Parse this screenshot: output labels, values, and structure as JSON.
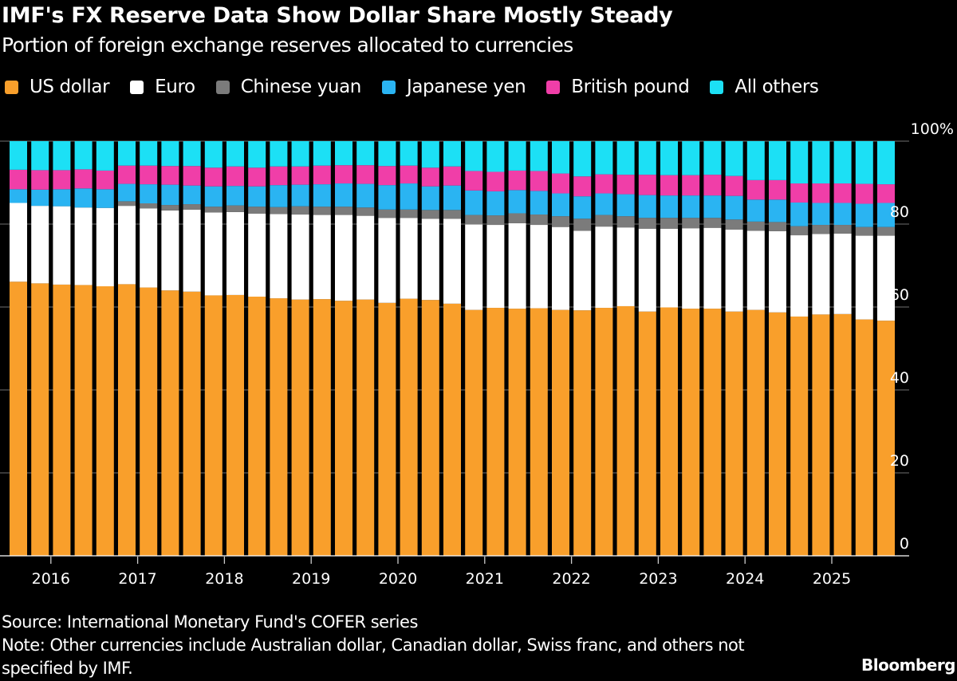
{
  "title": "IMF's FX Reserve Data Show Dollar Share Mostly Steady",
  "subtitle": "Portion of foreign exchange reserves allocated to currencies",
  "footer": {
    "source": "Source: International Monetary Fund's COFER series",
    "note_line1": "Note: Other currencies include Australian dollar, Canadian dollar, Swiss franc, and others not",
    "note_line2": "specified by IMF.",
    "brand": "Bloomberg"
  },
  "chart_data": {
    "type": "bar",
    "stacked": true,
    "title": "IMF's FX Reserve Data Show Dollar Share Mostly Steady",
    "subtitle": "Portion of foreign exchange reserves allocated to currencies",
    "xlabel": "",
    "ylabel": "",
    "ylim": [
      0,
      100
    ],
    "y_ticks": [
      0,
      20,
      40,
      60,
      80,
      100
    ],
    "y_tick_labels": [
      "0",
      "20",
      "40",
      "60",
      "80",
      "100%"
    ],
    "y_axis_side": "right",
    "grid": true,
    "legend_position": "top-left",
    "x_tick_labels": [
      "2016",
      "2017",
      "2018",
      "2019",
      "2020",
      "2021",
      "2022",
      "2023",
      "2024",
      "2025"
    ],
    "categories": [
      "2015Q3",
      "2015Q4",
      "2016Q1",
      "2016Q2",
      "2016Q3",
      "2016Q4",
      "2017Q1",
      "2017Q2",
      "2017Q3",
      "2017Q4",
      "2018Q1",
      "2018Q2",
      "2018Q3",
      "2018Q4",
      "2019Q1",
      "2019Q2",
      "2019Q3",
      "2019Q4",
      "2020Q1",
      "2020Q2",
      "2020Q3",
      "2020Q4",
      "2021Q1",
      "2021Q2",
      "2021Q3",
      "2021Q4",
      "2022Q1",
      "2022Q2",
      "2022Q3",
      "2022Q4",
      "2023Q1",
      "2023Q2",
      "2023Q3",
      "2023Q4",
      "2024Q1",
      "2024Q2",
      "2024Q3",
      "2024Q4",
      "2025Q1",
      "2025Q2",
      "2025Q3"
    ],
    "series": [
      {
        "name": "US dollar",
        "color": "#f99f2b",
        "values": [
          66.1,
          65.7,
          65.4,
          65.3,
          65.0,
          65.5,
          64.7,
          64.0,
          63.7,
          62.8,
          62.9,
          62.5,
          62.1,
          61.8,
          61.9,
          61.5,
          61.8,
          61.0,
          62.0,
          61.7,
          60.8,
          59.3,
          59.8,
          59.6,
          59.7,
          59.3,
          59.2,
          59.8,
          60.2,
          58.9,
          59.9,
          59.6,
          59.6,
          58.9,
          59.3,
          58.7,
          57.7,
          58.2,
          58.3,
          57.0,
          56.7
        ]
      },
      {
        "name": "Euro",
        "color": "#ffffff",
        "values": [
          19.0,
          18.7,
          18.9,
          18.7,
          18.9,
          18.9,
          19.1,
          19.3,
          19.8,
          20.0,
          20.0,
          20.0,
          20.3,
          20.5,
          20.3,
          20.7,
          20.2,
          20.5,
          19.5,
          19.6,
          20.5,
          20.6,
          20.0,
          20.6,
          20.1,
          20.0,
          19.2,
          19.6,
          19.0,
          20.0,
          19.0,
          19.4,
          19.5,
          19.8,
          19.1,
          19.6,
          19.6,
          19.4,
          19.4,
          20.2,
          20.5
        ]
      },
      {
        "name": "Chinese yuan",
        "color": "#7b7b7b",
        "values": [
          0.0,
          0.0,
          0.0,
          0.0,
          0.0,
          1.1,
          1.2,
          1.3,
          1.3,
          1.4,
          1.6,
          1.7,
          1.7,
          2.0,
          2.0,
          2.0,
          2.0,
          2.0,
          2.0,
          2.1,
          2.1,
          2.3,
          2.3,
          2.4,
          2.5,
          2.6,
          2.9,
          2.8,
          2.7,
          2.6,
          2.6,
          2.5,
          2.4,
          2.4,
          2.2,
          2.2,
          2.2,
          2.2,
          2.1,
          2.1,
          2.1
        ]
      },
      {
        "name": "Japanese yen",
        "color": "#2ab4f2",
        "values": [
          3.3,
          3.9,
          4.1,
          4.6,
          4.5,
          4.2,
          4.6,
          4.9,
          4.5,
          4.9,
          4.7,
          4.9,
          5.3,
          5.2,
          5.4,
          5.6,
          5.7,
          5.9,
          6.3,
          5.7,
          5.9,
          5.9,
          5.8,
          5.6,
          5.7,
          5.5,
          5.4,
          5.2,
          5.3,
          5.5,
          5.4,
          5.4,
          5.4,
          5.7,
          5.3,
          5.4,
          5.7,
          5.3,
          5.3,
          5.6,
          5.8
        ]
      },
      {
        "name": "British pound",
        "color": "#f03ea8",
        "values": [
          4.7,
          4.7,
          4.6,
          4.6,
          4.5,
          4.4,
          4.5,
          4.5,
          4.7,
          4.5,
          4.7,
          4.5,
          4.5,
          4.4,
          4.5,
          4.4,
          4.5,
          4.6,
          4.3,
          4.5,
          4.6,
          4.7,
          4.7,
          4.7,
          4.8,
          4.8,
          4.8,
          4.6,
          4.7,
          4.9,
          4.9,
          4.9,
          5.0,
          4.8,
          4.7,
          4.7,
          4.6,
          4.7,
          4.7,
          4.8,
          4.5
        ]
      },
      {
        "name": "All others",
        "color": "#1ce0f5",
        "values": [
          6.9,
          7.0,
          7.0,
          6.8,
          7.1,
          5.9,
          5.9,
          6.0,
          6.0,
          6.4,
          6.1,
          6.4,
          6.1,
          6.1,
          5.9,
          5.8,
          5.8,
          6.0,
          5.9,
          6.4,
          6.1,
          7.2,
          7.4,
          7.1,
          7.2,
          7.8,
          8.5,
          8.0,
          8.1,
          8.1,
          8.2,
          8.2,
          8.1,
          8.4,
          9.4,
          9.4,
          10.2,
          10.2,
          10.2,
          10.3,
          10.4
        ]
      }
    ]
  }
}
